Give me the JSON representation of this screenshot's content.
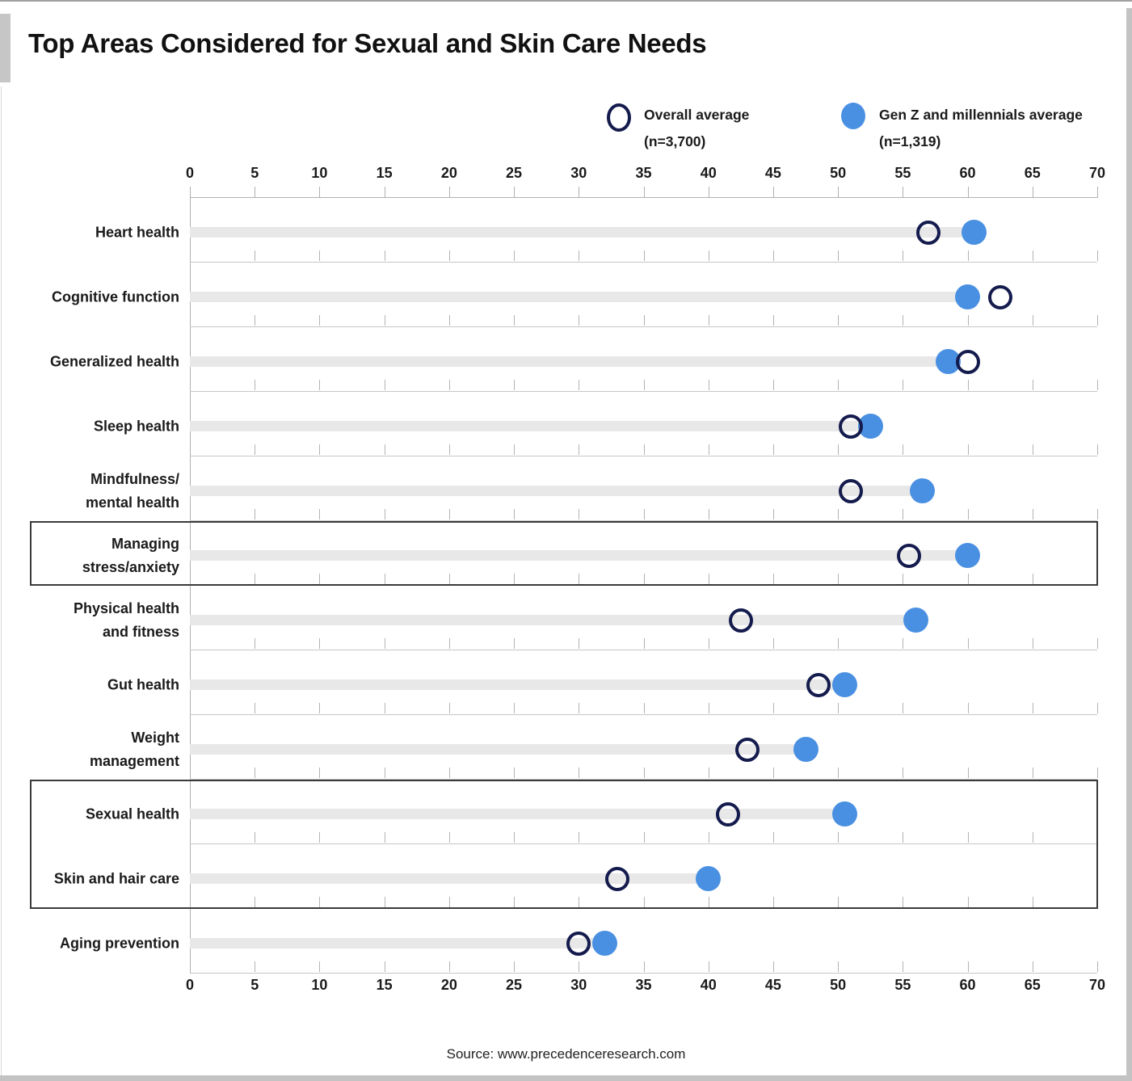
{
  "title": "Top Areas Considered for Sexual and Skin Care Needs",
  "legend": {
    "overall": {
      "label": "Overall average",
      "n": "(n=3,700)"
    },
    "genz": {
      "label": "Gen Z and millennials average",
      "n": "(n=1,319)"
    }
  },
  "source": "Source: www.precedenceresearch.com",
  "colors": {
    "genz_fill": "#4a90e2",
    "overall_ring": "#141b4d",
    "bar": "#e8e8e8",
    "gridline": "#c6c6c6",
    "tick": "#b0b0b0",
    "highlight_box_border": "#3a3a3a"
  },
  "chart_data": {
    "type": "scatter",
    "subtype": "horizontal dumbbell dot plot",
    "title": "Top Areas Considered for Sexual and Skin Care Needs",
    "x_axis": {
      "min": 0,
      "max": 70,
      "tick_step": 5,
      "ticks": [
        0,
        5,
        10,
        15,
        20,
        25,
        30,
        35,
        40,
        45,
        50,
        55,
        60,
        65,
        70
      ],
      "label_position": "top and bottom"
    },
    "categories": [
      "Heart health",
      "Cognitive function",
      "Generalized health",
      "Sleep health",
      "Mindfulness/\nmental health",
      "Managing\nstress/anxiety",
      "Physical health\nand fitness",
      "Gut health",
      "Weight\nmanagement",
      "Sexual health",
      "Skin and hair care",
      "Aging prevention"
    ],
    "series": [
      {
        "name": "Overall average (n=3,700)",
        "marker": "open-circle",
        "color": "#141b4d",
        "values": [
          57,
          62.5,
          60,
          51,
          51,
          55.5,
          42.5,
          48.5,
          43,
          41.5,
          33,
          30
        ]
      },
      {
        "name": "Gen Z and millennials average (n=1,319)",
        "marker": "filled-circle",
        "color": "#4a90e2",
        "values": [
          60.5,
          60,
          58.5,
          52.5,
          56.5,
          60,
          56,
          50.5,
          47.5,
          50.5,
          40,
          32
        ]
      }
    ],
    "bar": {
      "color": "#e8e8e8",
      "extends_from": 0,
      "extends_to": "Gen Z and millennials average value"
    },
    "highlight_boxes": [
      {
        "rows": [
          5
        ]
      },
      {
        "rows": [
          9,
          10
        ]
      }
    ],
    "legend_position": "top",
    "grid": "per-row tick marks every 5 units"
  }
}
